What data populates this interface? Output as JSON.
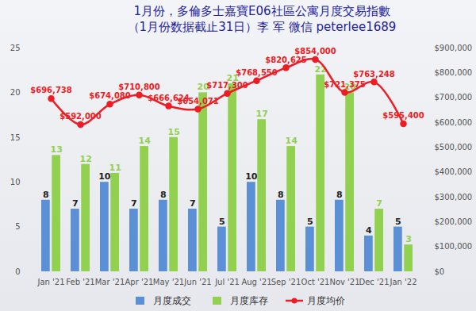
{
  "chart_data": {
    "type": "bar",
    "title": "1月份，多倫多士嘉寶E06社區公寓月度交易指數",
    "subtitle": "（1月份数据截止31日）李 军 微信 peterlee1689",
    "categories": [
      "Jan '21",
      "Feb '21",
      "Mar '21",
      "Apr '21",
      "May '21",
      "Jun '21",
      "Jul '21",
      "Aug '21",
      "Sep '21",
      "Oct '21",
      "Nov '21",
      "Dec '21",
      "Jan '22"
    ],
    "series": [
      {
        "name": "月度成交",
        "type": "bar",
        "color": "#5b8fd6",
        "values": [
          8,
          7,
          10,
          7,
          8,
          7,
          5,
          10,
          8,
          5,
          8,
          4,
          5
        ]
      },
      {
        "name": "月度库存",
        "type": "bar",
        "color": "#92d050",
        "values": [
          13,
          12,
          11,
          14,
          15,
          20,
          21,
          17,
          14,
          22,
          20,
          7,
          3
        ]
      },
      {
        "name": "月度均价",
        "type": "line",
        "axis": "y2",
        "color": "#ee1c24",
        "marker": "circle",
        "values": [
          696738,
          592000,
          674080,
          710800,
          666624,
          654071,
          717300,
          768550,
          820625,
          854000,
          721375,
          763248,
          595400
        ],
        "value_labels": [
          "$696,738",
          "$592,000",
          "$674,080",
          "$710,800",
          "$666,624",
          "$654,071",
          "$717,300",
          "$768,550",
          "$820,625",
          "$854,000",
          "$721,375",
          "$763,248",
          "$595,400"
        ]
      }
    ],
    "ylim": [
      0,
      25
    ],
    "yticks": [
      0,
      5,
      10,
      15,
      20,
      25
    ],
    "y2lim": [
      0,
      900000
    ],
    "y2ticks": [
      {
        "value": 0,
        "label": "$0"
      },
      {
        "value": 100000,
        "label": "$100,000"
      },
      {
        "value": 200000,
        "label": "$200,000"
      },
      {
        "value": 300000,
        "label": "$300,000"
      },
      {
        "value": 400000,
        "label": "$400,000"
      },
      {
        "value": 500000,
        "label": "$500,000"
      },
      {
        "value": 600000,
        "label": "$600,000"
      },
      {
        "value": 700000,
        "label": "$700,000"
      },
      {
        "value": 800000,
        "label": "$800,000"
      },
      {
        "value": 900000,
        "label": "$900,000"
      }
    ],
    "data_labels": true,
    "legend": "bottom",
    "grid": false
  }
}
